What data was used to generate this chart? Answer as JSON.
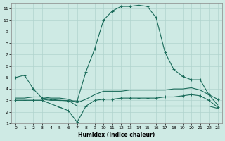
{
  "xlabel": "Humidex (Indice chaleur)",
  "bg_color": "#ceeae4",
  "grid_color": "#b0d4ce",
  "line_color": "#1a6b5a",
  "xlim": [
    -0.5,
    23.5
  ],
  "ylim": [
    1,
    11.5
  ],
  "xticks": [
    0,
    1,
    2,
    3,
    4,
    5,
    6,
    7,
    8,
    9,
    10,
    11,
    12,
    13,
    14,
    15,
    16,
    17,
    18,
    19,
    20,
    21,
    22,
    23
  ],
  "yticks": [
    1,
    2,
    3,
    4,
    5,
    6,
    7,
    8,
    9,
    10,
    11
  ],
  "line1_x": [
    0,
    1,
    2,
    3,
    4,
    5,
    6,
    7,
    8,
    9,
    10,
    11,
    12,
    13,
    14,
    15,
    16,
    17,
    18,
    19,
    20,
    21,
    22,
    23
  ],
  "line1_y": [
    5.0,
    5.2,
    4.0,
    3.2,
    3.1,
    3.0,
    2.95,
    2.95,
    5.5,
    7.5,
    10.0,
    10.8,
    11.2,
    11.2,
    11.3,
    11.2,
    10.2,
    7.2,
    5.7,
    5.1,
    4.8,
    4.8,
    3.5,
    3.1
  ],
  "line2_x": [
    0,
    1,
    2,
    3,
    4,
    5,
    6,
    7,
    8,
    9,
    10,
    11,
    12,
    13,
    14,
    15,
    16,
    17,
    18,
    19,
    20,
    21,
    22,
    23
  ],
  "line2_y": [
    3.0,
    3.0,
    3.0,
    3.0,
    2.7,
    2.4,
    2.1,
    1.1,
    2.5,
    3.0,
    3.1,
    3.1,
    3.2,
    3.2,
    3.2,
    3.2,
    3.2,
    3.3,
    3.3,
    3.4,
    3.5,
    3.4,
    3.0,
    2.4
  ],
  "line3_x": [
    0,
    1,
    2,
    3,
    4,
    5,
    6,
    7,
    8,
    9,
    10,
    11,
    12,
    13,
    14,
    15,
    16,
    17,
    18,
    19,
    20,
    21,
    22,
    23
  ],
  "line3_y": [
    3.1,
    3.1,
    3.1,
    3.1,
    3.0,
    3.0,
    3.0,
    2.5,
    2.5,
    2.5,
    2.5,
    2.5,
    2.5,
    2.5,
    2.5,
    2.5,
    2.5,
    2.5,
    2.5,
    2.5,
    2.5,
    2.5,
    2.5,
    2.3
  ],
  "line4_x": [
    0,
    1,
    2,
    3,
    4,
    5,
    6,
    7,
    8,
    9,
    10,
    11,
    12,
    13,
    14,
    15,
    16,
    17,
    18,
    19,
    20,
    21,
    22,
    23
  ],
  "line4_y": [
    3.2,
    3.2,
    3.3,
    3.3,
    3.2,
    3.2,
    3.1,
    2.8,
    3.1,
    3.5,
    3.8,
    3.8,
    3.8,
    3.9,
    3.9,
    3.9,
    3.9,
    3.9,
    4.0,
    4.0,
    4.1,
    3.9,
    3.5,
    2.6
  ]
}
